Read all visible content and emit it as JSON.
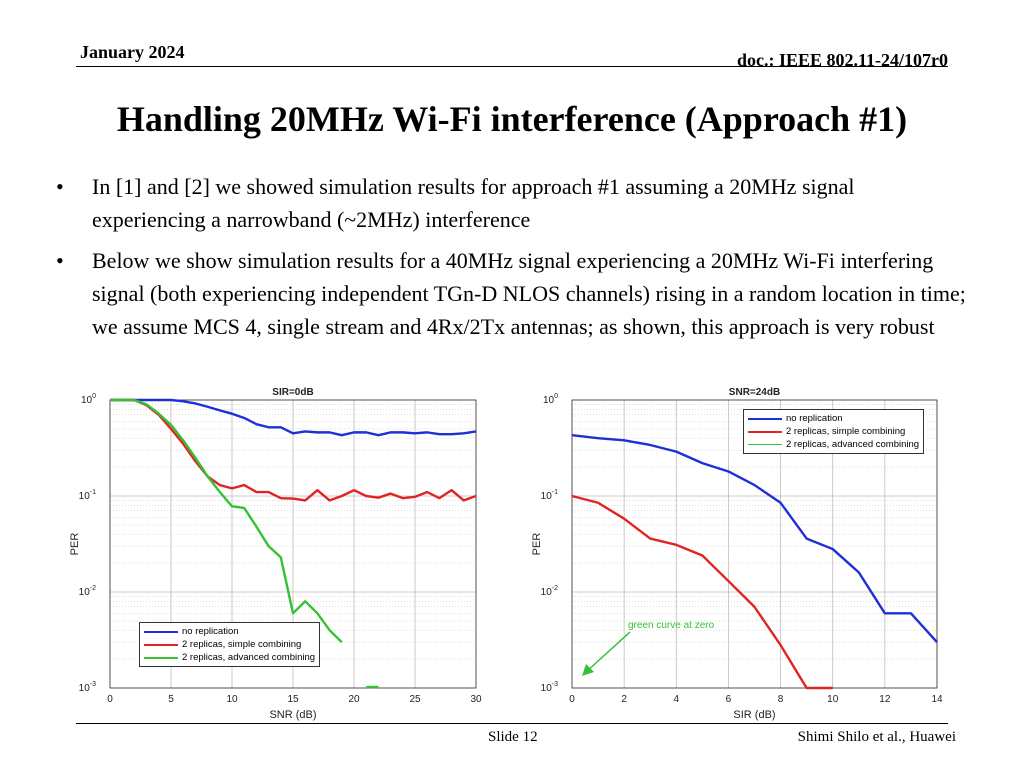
{
  "header": {
    "date": "January 2024",
    "doc": "doc.: IEEE 802.11-24/107r0"
  },
  "title": "Handling 20MHz Wi-Fi interference (Approach #1)",
  "bullets": [
    "In [1] and [2] we showed simulation results for approach #1 assuming a 20MHz signal experiencing a narrowband (~2MHz) interference",
    "Below we show simulation results for a 40MHz signal experiencing a 20MHz Wi-Fi interfering signal (both experiencing independent TGn-D NLOS channels) rising in a random location in time; we assume MCS 4, single stream and 4Rx/2Tx antennas; as shown, this approach is very robust"
  ],
  "bullet_symbol": "•",
  "footer": {
    "slide": "Slide 12",
    "author": "Shimi Shilo et al., Huawei"
  },
  "annotation": "green curve at zero",
  "colors": {
    "no_replication": "#1f2fd6",
    "simple": "#e02424",
    "advanced": "#34c234"
  },
  "chart_data": [
    {
      "type": "line",
      "title": "SIR=0dB",
      "xlabel": "SNR (dB)",
      "ylabel": "PER",
      "xlim": [
        0,
        30
      ],
      "ylim": [
        0.001,
        1
      ],
      "yscale": "log",
      "xticks": [
        "0",
        "5",
        "10",
        "15",
        "20",
        "25",
        "30"
      ],
      "yticks": [
        "10^0",
        "10^-1",
        "10^-2",
        "10^-3"
      ],
      "grid": true,
      "legend_position": "bottom-left",
      "series": [
        {
          "name": "no replication",
          "color": "#1f2fd6",
          "x": [
            0,
            1,
            2,
            3,
            4,
            5,
            6,
            7,
            8,
            9,
            10,
            11,
            12,
            13,
            14,
            15,
            16,
            17,
            18,
            19,
            20,
            21,
            22,
            23,
            24,
            25,
            26,
            27,
            28,
            29,
            30
          ],
          "y": [
            1,
            1,
            1,
            1,
            1,
            1,
            0.97,
            0.92,
            0.85,
            0.78,
            0.72,
            0.65,
            0.56,
            0.52,
            0.52,
            0.45,
            0.47,
            0.46,
            0.46,
            0.43,
            0.46,
            0.46,
            0.43,
            0.46,
            0.46,
            0.45,
            0.46,
            0.44,
            0.44,
            0.45,
            0.47
          ]
        },
        {
          "name": "2 replicas, simple combining",
          "color": "#e02424",
          "x": [
            0,
            1,
            2,
            3,
            4,
            5,
            6,
            7,
            8,
            9,
            10,
            11,
            12,
            13,
            14,
            15,
            16,
            17,
            18,
            19,
            20,
            21,
            22,
            23,
            24,
            25,
            26,
            27,
            28,
            29,
            30
          ],
          "y": [
            1,
            1,
            1,
            0.88,
            0.7,
            0.5,
            0.35,
            0.23,
            0.16,
            0.13,
            0.12,
            0.13,
            0.11,
            0.11,
            0.095,
            0.094,
            0.09,
            0.115,
            0.09,
            0.1,
            0.115,
            0.1,
            0.096,
            0.106,
            0.095,
            0.098,
            0.11,
            0.095,
            0.115,
            0.09,
            0.1
          ]
        },
        {
          "name": "2 replicas, advanced combining",
          "color": "#34c234",
          "x": [
            0,
            1,
            2,
            3,
            4,
            5,
            6,
            7,
            8,
            9,
            10,
            11,
            12,
            13,
            14,
            15,
            16,
            17,
            18,
            19
          ],
          "y": [
            1,
            1,
            1,
            0.9,
            0.72,
            0.55,
            0.38,
            0.25,
            0.16,
            0.11,
            0.078,
            0.075,
            0.048,
            0.03,
            0.023,
            0.006,
            0.008,
            0.006,
            0.004,
            0.003
          ]
        }
      ]
    },
    {
      "type": "line",
      "title": "SNR=24dB",
      "xlabel": "SIR (dB)",
      "ylabel": "PER",
      "xlim": [
        0,
        14
      ],
      "ylim": [
        0.001,
        1
      ],
      "yscale": "log",
      "xticks": [
        "0",
        "2",
        "4",
        "6",
        "8",
        "10",
        "12",
        "14"
      ],
      "yticks": [
        "10^0",
        "10^-1",
        "10^-2",
        "10^-3"
      ],
      "grid": true,
      "legend_position": "top-right",
      "series": [
        {
          "name": "no replication",
          "color": "#1f2fd6",
          "x": [
            0,
            1,
            2,
            3,
            4,
            5,
            6,
            7,
            8,
            9,
            10,
            11,
            12,
            13,
            14
          ],
          "y": [
            0.43,
            0.4,
            0.38,
            0.34,
            0.29,
            0.22,
            0.18,
            0.13,
            0.085,
            0.036,
            0.028,
            0.016,
            0.006,
            0.006,
            0.003
          ]
        },
        {
          "name": "2 replicas, simple combining",
          "color": "#e02424",
          "x": [
            0,
            1,
            2,
            3,
            4,
            5,
            6,
            7,
            8,
            9,
            10
          ],
          "y": [
            0.1,
            0.085,
            0.058,
            0.036,
            0.031,
            0.024,
            0.013,
            0.007,
            0.0028,
            0.001,
            0.001
          ]
        },
        {
          "name": "2 replicas, advanced combining",
          "color": "#34c234",
          "x": [],
          "y": []
        }
      ]
    }
  ]
}
